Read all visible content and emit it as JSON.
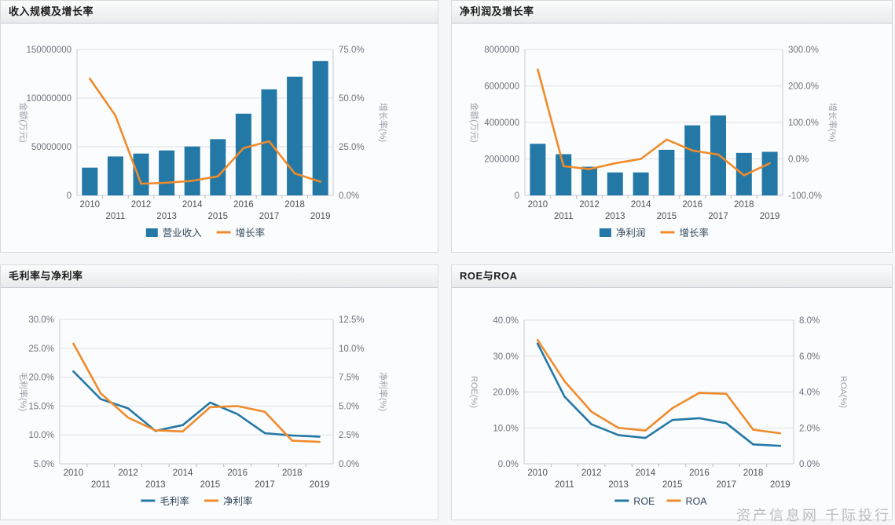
{
  "page": {
    "watermark": "资产信息网 千际投行"
  },
  "colors": {
    "bar_blue": "#2478a6",
    "line_blue": "#2478a6",
    "line_orange": "#ef8b2b",
    "grid": "#dde1e6",
    "plot_border": "#c5cbd2",
    "y_tick_text": "#6e737b",
    "x_tick_text": "#4d5157",
    "axis_title_text": "#9aa0a8",
    "legend_text": "#33485c"
  },
  "chart_data": [
    {
      "id": "revenue-growth",
      "type": "bar+line",
      "title": "收入规模及增长率",
      "categories": [
        "2010",
        "2011",
        "2012",
        "2013",
        "2014",
        "2015",
        "2016",
        "2017",
        "2018",
        "2019"
      ],
      "left_axis": {
        "title": "金额(万元)",
        "min": 0,
        "max": 150000000,
        "ticks": [
          0,
          50000000,
          100000000,
          150000000
        ],
        "format": "int"
      },
      "right_axis": {
        "title": "增长率(%)",
        "min": 0,
        "max": 75,
        "ticks": [
          0,
          25,
          50,
          75
        ],
        "format": "pct"
      },
      "series": [
        {
          "name": "营业收入",
          "type": "bar",
          "axis": "left",
          "color": "#2478a6",
          "values": [
            28500000,
            40000000,
            43000000,
            46200000,
            50300000,
            57800000,
            84000000,
            109000000,
            122000000,
            138000000
          ]
        },
        {
          "name": "增长率",
          "type": "line",
          "axis": "right",
          "color": "#ef8b2b",
          "values": [
            60,
            41,
            6,
            6.5,
            7.5,
            9.8,
            24.3,
            27.8,
            11.3,
            7
          ]
        }
      ],
      "legend": [
        "营业收入",
        "增长率"
      ],
      "legend_position": "bottom"
    },
    {
      "id": "net-profit-growth",
      "type": "bar+line",
      "title": "净利润及增长率",
      "categories": [
        "2010",
        "2011",
        "2012",
        "2013",
        "2014",
        "2015",
        "2016",
        "2017",
        "2018",
        "2019"
      ],
      "left_axis": {
        "title": "金额(万元)",
        "min": 0,
        "max": 8000000,
        "ticks": [
          0,
          2000000,
          4000000,
          6000000,
          8000000
        ],
        "format": "int"
      },
      "right_axis": {
        "title": "增长率(%)",
        "min": -100,
        "max": 300,
        "ticks": [
          -100,
          0,
          100,
          200,
          300
        ],
        "format": "pct"
      },
      "series": [
        {
          "name": "净利润",
          "type": "bar",
          "axis": "left",
          "color": "#2478a6",
          "values": [
            2830000,
            2260000,
            1570000,
            1260000,
            1260000,
            2500000,
            3840000,
            4380000,
            2330000,
            2390000
          ]
        },
        {
          "name": "增长率",
          "type": "line",
          "axis": "right",
          "color": "#ef8b2b",
          "values": [
            245,
            -20,
            -28,
            -12,
            0,
            53,
            23,
            12,
            -45,
            -12
          ]
        }
      ],
      "legend": [
        "净利润",
        "增长率"
      ],
      "legend_position": "bottom"
    },
    {
      "id": "margins",
      "type": "line",
      "title": "毛利率与净利率",
      "categories": [
        "2010",
        "2011",
        "2012",
        "2013",
        "2014",
        "2015",
        "2016",
        "2017",
        "2018",
        "2019"
      ],
      "left_axis": {
        "title": "毛利率(%)",
        "min": 5,
        "max": 30,
        "ticks": [
          5,
          10,
          15,
          20,
          25,
          30
        ],
        "format": "pct"
      },
      "right_axis": {
        "title": "净利率(%)",
        "min": 0,
        "max": 12.5,
        "ticks": [
          0,
          2.5,
          5,
          7.5,
          10,
          12.5
        ],
        "format": "pct"
      },
      "series": [
        {
          "name": "毛利率",
          "type": "line",
          "axis": "left",
          "color": "#2478a6",
          "values": [
            21,
            16.2,
            14.6,
            10.7,
            11.7,
            15.6,
            13.6,
            10.3,
            9.9,
            9.7
          ]
        },
        {
          "name": "净利率",
          "type": "line",
          "axis": "right",
          "color": "#ef8b2b",
          "values": [
            10.4,
            6.1,
            4.0,
            2.9,
            2.8,
            4.9,
            5.0,
            4.5,
            2.0,
            1.9
          ]
        }
      ],
      "legend": [
        "毛利率",
        "净利率"
      ],
      "legend_position": "bottom"
    },
    {
      "id": "roe-roa",
      "type": "line",
      "title": "ROE与ROA",
      "categories": [
        "2010",
        "2011",
        "2012",
        "2013",
        "2014",
        "2015",
        "2016",
        "2017",
        "2018",
        "2019"
      ],
      "left_axis": {
        "title": "ROE(%)",
        "min": 0,
        "max": 40,
        "ticks": [
          0,
          10,
          20,
          30,
          40
        ],
        "format": "pct"
      },
      "right_axis": {
        "title": "ROA(%)",
        "min": 0,
        "max": 8,
        "ticks": [
          0,
          2,
          4,
          6,
          8
        ],
        "format": "pct"
      },
      "series": [
        {
          "name": "ROE",
          "type": "line",
          "axis": "left",
          "color": "#2478a6",
          "values": [
            33.5,
            18.7,
            11,
            8,
            7.2,
            12.2,
            12.7,
            11.3,
            5.4,
            5
          ]
        },
        {
          "name": "ROA",
          "type": "line",
          "axis": "right",
          "color": "#ef8b2b",
          "values": [
            6.9,
            4.6,
            2.9,
            2.0,
            1.85,
            3.1,
            3.95,
            3.9,
            1.9,
            1.7
          ]
        }
      ],
      "legend": [
        "ROE",
        "ROA"
      ],
      "legend_position": "bottom"
    }
  ]
}
